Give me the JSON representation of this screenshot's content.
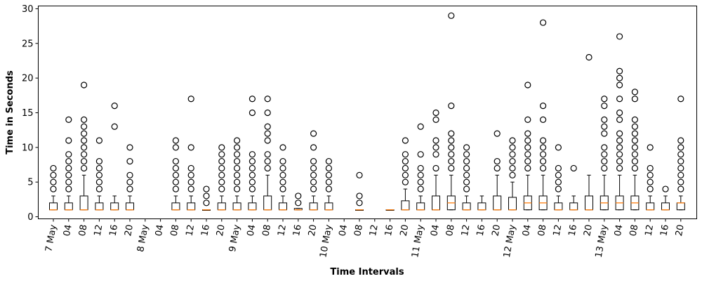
{
  "chart_data": {
    "type": "box",
    "xlabel": "Time Intervals",
    "ylabel": "Time in Seconds",
    "ylim": [
      -0.3,
      30.4
    ],
    "yticks": [
      0,
      5,
      10,
      15,
      20,
      25,
      30
    ],
    "grid": false,
    "colors": {
      "box": "#000000",
      "median": "#ff7f0e",
      "flier": "#000000"
    },
    "categories": [
      "7 May",
      "04",
      "08",
      "12",
      "16",
      "20",
      "8 May",
      "04",
      "08",
      "12",
      "16",
      "20",
      "9 May",
      "04",
      "08",
      "12",
      "16",
      "20",
      "10 May",
      "04",
      "08",
      "12",
      "16",
      "20",
      "11 May",
      "04",
      "08",
      "12",
      "16",
      "20",
      "12 May",
      "04",
      "08",
      "12",
      "16",
      "20",
      "13 May",
      "04",
      "08",
      "12",
      "16",
      "20"
    ],
    "boxes": [
      {
        "category": "7 May",
        "q1": 1,
        "median": 1,
        "q3": 2,
        "whisker_low": 1,
        "whisker_high": 3,
        "fliers": [
          4,
          5,
          6,
          7
        ]
      },
      {
        "category": "04",
        "q1": 1,
        "median": 1,
        "q3": 2,
        "whisker_low": 1,
        "whisker_high": 3,
        "fliers": [
          4,
          5,
          6,
          7,
          8,
          9,
          11,
          14
        ]
      },
      {
        "category": "08",
        "q1": 1,
        "median": 1,
        "q3": 3,
        "whisker_low": 1,
        "whisker_high": 6,
        "fliers": [
          7,
          8,
          9,
          10,
          11,
          12,
          13,
          14,
          19
        ]
      },
      {
        "category": "12",
        "q1": 1,
        "median": 1,
        "q3": 2,
        "whisker_low": 1,
        "whisker_high": 3,
        "fliers": [
          4,
          5,
          6,
          7,
          8,
          11
        ]
      },
      {
        "category": "16",
        "q1": 1,
        "median": 1,
        "q3": 2,
        "whisker_low": 1,
        "whisker_high": 3,
        "fliers": [
          13,
          16
        ]
      },
      {
        "category": "20",
        "q1": 1,
        "median": 1,
        "q3": 2,
        "whisker_low": 1,
        "whisker_high": 3,
        "fliers": [
          4,
          5,
          6,
          8,
          10
        ]
      },
      {
        "category": "8 May",
        "empty": true
      },
      {
        "category": "04",
        "empty": true
      },
      {
        "category": "08",
        "q1": 1,
        "median": 1,
        "q3": 2,
        "whisker_low": 1,
        "whisker_high": 3,
        "fliers": [
          4,
          5,
          6,
          7,
          8,
          10,
          11
        ]
      },
      {
        "category": "12",
        "q1": 1,
        "median": 1,
        "q3": 2,
        "whisker_low": 1,
        "whisker_high": 3,
        "fliers": [
          4,
          5,
          6,
          7,
          10,
          17
        ]
      },
      {
        "category": "16",
        "q1": 1,
        "median": 1,
        "q3": 1,
        "whisker_low": 1,
        "whisker_high": 1,
        "fliers": [
          2,
          3,
          4
        ]
      },
      {
        "category": "20",
        "q1": 1,
        "median": 1,
        "q3": 2,
        "whisker_low": 1,
        "whisker_high": 3,
        "fliers": [
          4,
          5,
          6,
          7,
          8,
          9,
          10
        ]
      },
      {
        "category": "9 May",
        "q1": 1,
        "median": 1,
        "q3": 2,
        "whisker_low": 1,
        "whisker_high": 3,
        "fliers": [
          4,
          5,
          6,
          7,
          8,
          9,
          10,
          11
        ]
      },
      {
        "category": "04",
        "q1": 1,
        "median": 1,
        "q3": 2,
        "whisker_low": 1,
        "whisker_high": 3,
        "fliers": [
          4,
          5,
          6,
          7,
          8,
          9,
          15,
          17
        ]
      },
      {
        "category": "08",
        "q1": 1,
        "median": 1,
        "q3": 3,
        "whisker_low": 1,
        "whisker_high": 6,
        "fliers": [
          7,
          8,
          9,
          11,
          12,
          13,
          15,
          17
        ]
      },
      {
        "category": "12",
        "q1": 1,
        "median": 1,
        "q3": 2,
        "whisker_low": 1,
        "whisker_high": 3,
        "fliers": [
          4,
          5,
          6,
          7,
          8,
          10
        ]
      },
      {
        "category": "16",
        "q1": 1,
        "median": 1,
        "q3": 1.2,
        "whisker_low": 1,
        "whisker_high": 1.2,
        "fliers": [
          2,
          3
        ]
      },
      {
        "category": "20",
        "q1": 1,
        "median": 1,
        "q3": 2,
        "whisker_low": 1,
        "whisker_high": 3,
        "fliers": [
          4,
          5,
          6,
          7,
          8,
          10,
          12
        ]
      },
      {
        "category": "10 May",
        "q1": 1,
        "median": 1,
        "q3": 2,
        "whisker_low": 1,
        "whisker_high": 3,
        "fliers": [
          4,
          5,
          6,
          7,
          8
        ]
      },
      {
        "category": "04",
        "empty": true
      },
      {
        "category": "08",
        "q1": 1,
        "median": 1,
        "q3": 1,
        "whisker_low": 1,
        "whisker_high": 1,
        "fliers": [
          2,
          3,
          6
        ]
      },
      {
        "category": "12",
        "empty": true
      },
      {
        "category": "16",
        "q1": 1,
        "median": 1,
        "q3": 1,
        "whisker_low": 1,
        "whisker_high": 1,
        "fliers": []
      },
      {
        "category": "20",
        "q1": 1,
        "median": 1,
        "q3": 2.3,
        "whisker_low": 1,
        "whisker_high": 4,
        "fliers": [
          5,
          6,
          7,
          8,
          9,
          11
        ]
      },
      {
        "category": "11 May",
        "q1": 1,
        "median": 1,
        "q3": 2,
        "whisker_low": 1,
        "whisker_high": 3,
        "fliers": [
          4,
          5,
          6,
          7,
          9,
          13
        ]
      },
      {
        "category": "04",
        "q1": 1,
        "median": 1,
        "q3": 3,
        "whisker_low": 1,
        "whisker_high": 6,
        "fliers": [
          7,
          9,
          10,
          11,
          14,
          15
        ]
      },
      {
        "category": "08",
        "q1": 1,
        "median": 2,
        "q3": 3,
        "whisker_low": 1,
        "whisker_high": 6,
        "fliers": [
          7,
          8,
          9,
          10,
          11,
          12,
          16,
          29
        ]
      },
      {
        "category": "12",
        "q1": 1,
        "median": 1,
        "q3": 2,
        "whisker_low": 1,
        "whisker_high": 3,
        "fliers": [
          4,
          5,
          6,
          7,
          8,
          9,
          10
        ]
      },
      {
        "category": "16",
        "q1": 1,
        "median": 1,
        "q3": 2,
        "whisker_low": 1,
        "whisker_high": 3,
        "fliers": []
      },
      {
        "category": "20",
        "q1": 1,
        "median": 1,
        "q3": 3,
        "whisker_low": 1,
        "whisker_high": 6,
        "fliers": [
          7,
          8,
          12
        ]
      },
      {
        "category": "12 May",
        "q1": 1,
        "median": 1,
        "q3": 2.8,
        "whisker_low": 1,
        "whisker_high": 5,
        "fliers": [
          6,
          7,
          8,
          9,
          10,
          11
        ]
      },
      {
        "category": "04",
        "q1": 1,
        "median": 2,
        "q3": 3,
        "whisker_low": 1,
        "whisker_high": 6,
        "fliers": [
          7,
          8,
          9,
          10,
          11,
          12,
          14,
          19
        ]
      },
      {
        "category": "08",
        "q1": 1,
        "median": 2,
        "q3": 3,
        "whisker_low": 1,
        "whisker_high": 6,
        "fliers": [
          7,
          8,
          9,
          10,
          11,
          14,
          16,
          28
        ]
      },
      {
        "category": "12",
        "q1": 1,
        "median": 1,
        "q3": 2,
        "whisker_low": 1,
        "whisker_high": 3,
        "fliers": [
          4,
          5,
          6,
          7,
          10
        ]
      },
      {
        "category": "16",
        "q1": 1,
        "median": 1,
        "q3": 2,
        "whisker_low": 1,
        "whisker_high": 3,
        "fliers": [
          7
        ]
      },
      {
        "category": "20",
        "q1": 1,
        "median": 1,
        "q3": 3,
        "whisker_low": 1,
        "whisker_high": 6,
        "fliers": [
          23
        ]
      },
      {
        "category": "13 May",
        "q1": 1,
        "median": 2,
        "q3": 3,
        "whisker_low": 1,
        "whisker_high": 6,
        "fliers": [
          7,
          8,
          9,
          10,
          12,
          13,
          14,
          16,
          17
        ]
      },
      {
        "category": "04",
        "q1": 1,
        "median": 2,
        "q3": 3,
        "whisker_low": 1,
        "whisker_high": 6,
        "fliers": [
          7,
          8,
          9,
          10,
          11,
          12,
          14,
          15,
          17,
          19,
          20,
          21,
          26
        ]
      },
      {
        "category": "08",
        "q1": 1,
        "median": 2,
        "q3": 3,
        "whisker_low": 1,
        "whisker_high": 6,
        "fliers": [
          7,
          8,
          9,
          10,
          11,
          12,
          13,
          14,
          17,
          18
        ]
      },
      {
        "category": "12",
        "q1": 1,
        "median": 1,
        "q3": 2,
        "whisker_low": 1,
        "whisker_high": 3,
        "fliers": [
          4,
          5,
          6,
          7,
          10
        ]
      },
      {
        "category": "16",
        "q1": 1,
        "median": 1,
        "q3": 2,
        "whisker_low": 1,
        "whisker_high": 3,
        "fliers": [
          4
        ]
      },
      {
        "category": "20",
        "q1": 1,
        "median": 2,
        "q3": 2,
        "whisker_low": 1,
        "whisker_high": 3,
        "fliers": [
          4,
          5,
          6,
          7,
          8,
          9,
          10,
          11,
          17
        ]
      }
    ]
  }
}
